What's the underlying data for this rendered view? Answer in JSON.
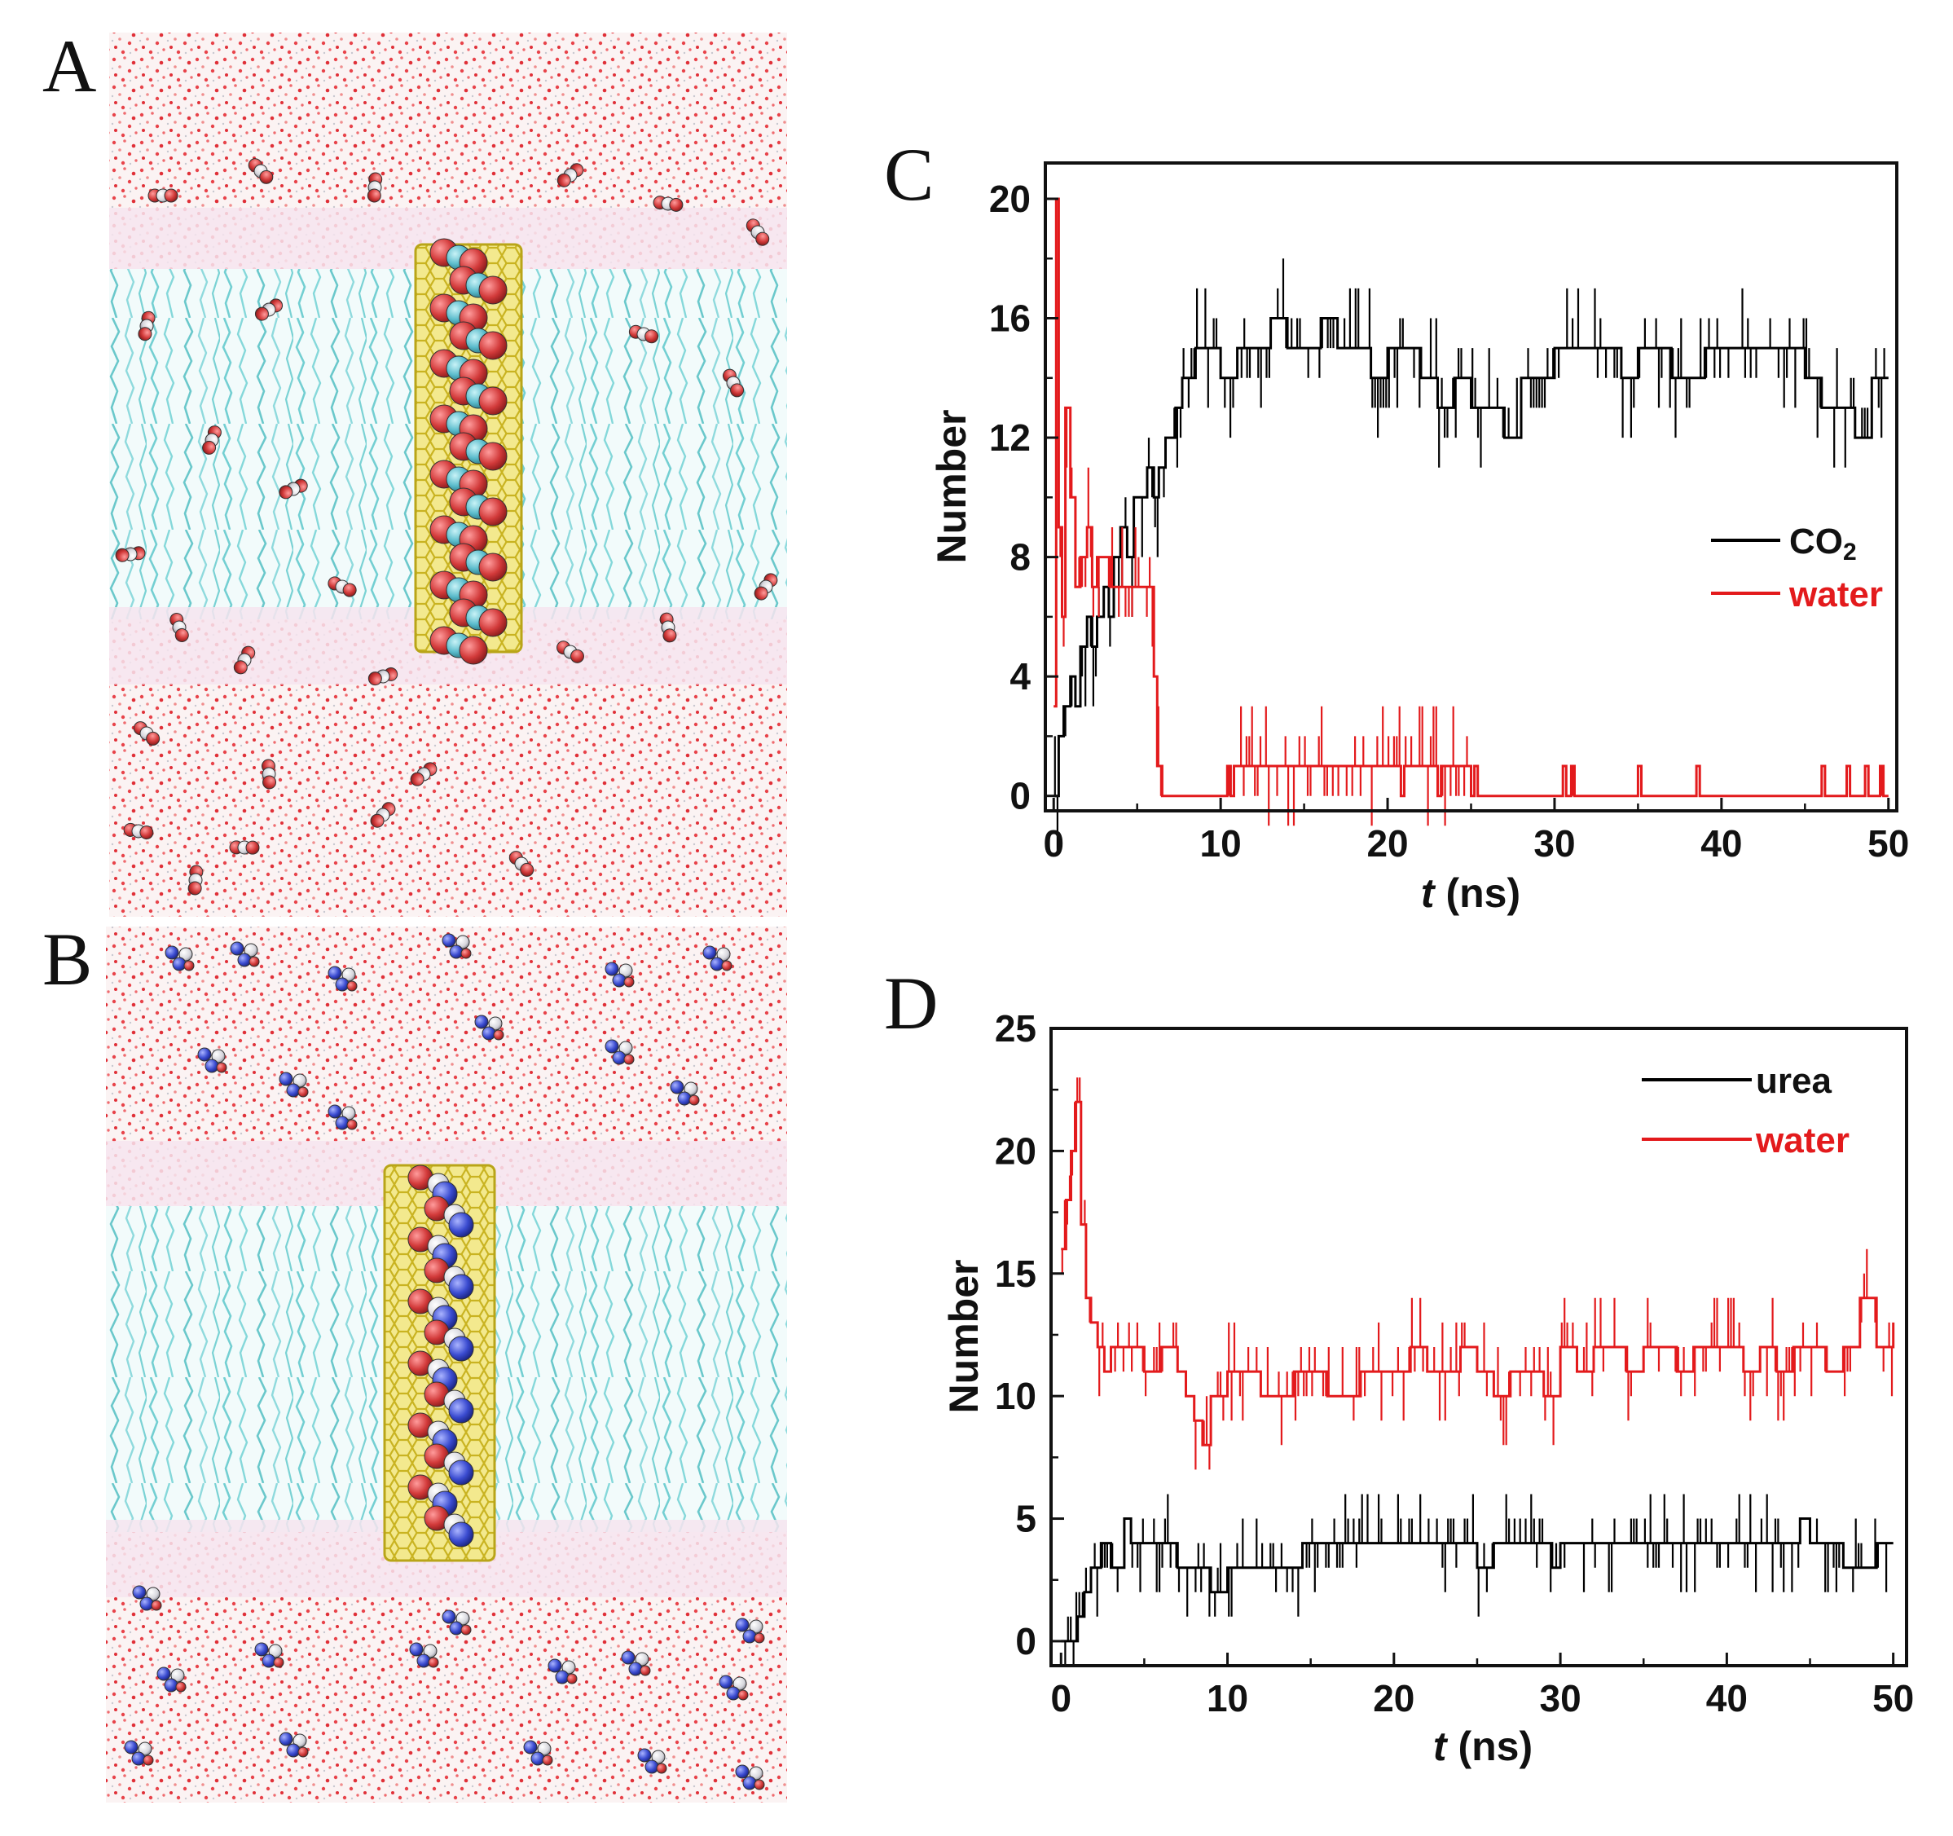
{
  "figure": {
    "panels": {
      "A": {
        "label": "A"
      },
      "B": {
        "label": "B"
      },
      "C": {
        "label": "C"
      },
      "D": {
        "label": "D"
      }
    },
    "colors": {
      "black_series": "#000000",
      "red_series": "#e31a1c",
      "water_dots": "#e8434a",
      "lipid_tails": "#7ed4d6",
      "nanotube": "#e0cf3a",
      "oxygen": "#d23a3a",
      "carbon": "#5bbccc",
      "nitrogen": "#3a4bd0"
    }
  },
  "chart_data": [
    {
      "panel": "C",
      "type": "line",
      "title": "",
      "xlabel_italic": "t",
      "xlabel_unit": " (ns)",
      "ylabel": "Number",
      "xlim": [
        -0.5,
        50.5
      ],
      "ylim": [
        -0.5,
        21.2
      ],
      "xticks": [
        0,
        10,
        20,
        30,
        40,
        50
      ],
      "yticks": [
        0,
        4,
        8,
        12,
        16,
        20
      ],
      "xtick_labels": [
        "0",
        "10",
        "20",
        "30",
        "40",
        "50"
      ],
      "ytick_labels": [
        "0",
        "4",
        "8",
        "12",
        "16",
        "20"
      ],
      "legend_position": "right",
      "series": [
        {
          "name": "CO",
          "name_subscript": "2",
          "color": "#000000",
          "step": true,
          "x": [
            0,
            0.3,
            0.6,
            1.0,
            1.3,
            1.6,
            2.0,
            2.3,
            2.6,
            3.0,
            3.3,
            3.6,
            4.0,
            4.4,
            4.8,
            5.2,
            5.6,
            6.0,
            6.3,
            6.7,
            7.0,
            7.3,
            7.7,
            8.0,
            8.5,
            9.0,
            10,
            11,
            12,
            13,
            14,
            15,
            16,
            17,
            18,
            19,
            20,
            21,
            22,
            23,
            24,
            25,
            26,
            27,
            28,
            29,
            30,
            31,
            32,
            33,
            34,
            35,
            36,
            37,
            38,
            39,
            40,
            41,
            42,
            43,
            44,
            45,
            46,
            47,
            48,
            49,
            50
          ],
          "y": [
            0,
            2,
            3,
            4,
            3,
            5,
            6,
            5,
            6,
            7,
            6,
            8,
            9,
            8,
            10,
            10,
            11,
            10,
            11,
            12,
            12,
            13,
            14,
            14,
            15,
            15,
            14,
            15,
            15,
            16,
            15,
            15,
            16,
            15,
            15,
            14,
            15,
            15,
            14,
            13,
            14,
            13,
            13,
            12,
            14,
            14,
            15,
            15,
            15,
            15,
            14,
            15,
            15,
            14,
            14,
            15,
            15,
            15,
            15,
            15,
            15,
            14,
            13,
            13,
            12,
            14,
            14
          ]
        },
        {
          "name": "water",
          "color": "#e31a1c",
          "step": true,
          "x": [
            0,
            0.15,
            0.3,
            0.5,
            0.7,
            1.0,
            1.3,
            1.6,
            2.0,
            2.3,
            2.6,
            3.0,
            3.4,
            3.8,
            4.2,
            4.6,
            5.0,
            5.5,
            6.0,
            6.2,
            6.5,
            10.4,
            10.6,
            10.8,
            20.8,
            21.0,
            23.0,
            23.2,
            25.0,
            25.2,
            25.4,
            30.5,
            30.7,
            31.0,
            31.2,
            35.0,
            35.2,
            38.5,
            38.7,
            46.0,
            46.2,
            47.5,
            47.7,
            48.6,
            48.8,
            49.5,
            49.7,
            50
          ],
          "y": [
            3,
            20,
            9,
            6,
            13,
            10,
            7,
            8,
            9,
            7,
            8,
            8,
            7,
            7,
            7,
            7,
            7,
            7,
            4,
            1,
            0,
            1,
            0,
            1,
            0,
            1,
            0,
            1,
            0,
            1,
            0,
            1,
            0,
            1,
            0,
            1,
            0,
            1,
            0,
            1,
            0,
            1,
            0,
            1,
            0,
            1,
            0,
            0
          ]
        }
      ]
    },
    {
      "panel": "D",
      "type": "line",
      "title": "",
      "xlabel_italic": "t",
      "xlabel_unit": " (ns)",
      "ylabel": "Number",
      "xlim": [
        -0.6,
        50.8
      ],
      "ylim": [
        -1.0,
        25.0
      ],
      "xticks": [
        0,
        10,
        20,
        30,
        40,
        50
      ],
      "yticks": [
        0,
        5,
        10,
        15,
        20,
        25
      ],
      "xtick_labels": [
        "0",
        "10",
        "20",
        "30",
        "40",
        "50"
      ],
      "ytick_labels": [
        "0",
        "5",
        "10",
        "15",
        "20",
        "25"
      ],
      "legend_position": "top-right",
      "series": [
        {
          "name": "urea",
          "color": "#000000",
          "step": true,
          "x": [
            0,
            1.0,
            1.4,
            1.8,
            2.4,
            3.0,
            3.8,
            4.2,
            5.0,
            6.0,
            7.0,
            8.0,
            9.0,
            10,
            11,
            12,
            13,
            14,
            14.5,
            16,
            18,
            20,
            22,
            24,
            25,
            26,
            28,
            29.5,
            30,
            32,
            34,
            36,
            38,
            40,
            42,
            44,
            44.4,
            45,
            47,
            48,
            49,
            50
          ],
          "y": [
            0,
            1,
            2,
            3,
            4,
            3,
            5,
            4,
            4,
            4,
            3,
            3,
            2,
            3,
            3,
            3,
            3,
            3,
            4,
            4,
            4,
            4,
            4,
            4,
            3,
            4,
            4,
            3,
            4,
            4,
            4,
            4,
            4,
            4,
            4,
            4,
            5,
            4,
            3,
            3,
            4,
            4
          ]
        },
        {
          "name": "water",
          "color": "#e31a1c",
          "step": true,
          "x": [
            0,
            0.3,
            0.6,
            0.9,
            1.2,
            1.5,
            1.8,
            2.2,
            2.6,
            3.0,
            4.0,
            5.0,
            6.0,
            7.0,
            7.5,
            8.0,
            8.5,
            9.0,
            10,
            11,
            12,
            13,
            14,
            15,
            16,
            17,
            18,
            19,
            20,
            21,
            22,
            23,
            24,
            25,
            26,
            27,
            28,
            29,
            30,
            31,
            32,
            33,
            34,
            35,
            36,
            37,
            38,
            39,
            40,
            41,
            42,
            43,
            44,
            45,
            46,
            47,
            48,
            49,
            50
          ],
          "y": [
            16,
            18,
            20,
            22,
            17,
            14,
            13,
            12,
            11,
            12,
            12,
            11,
            12,
            11,
            10,
            9,
            8,
            10,
            11,
            11,
            10,
            10,
            11,
            11,
            10,
            10,
            11,
            11,
            11,
            12,
            11,
            11,
            12,
            11,
            10,
            11,
            11,
            10,
            12,
            11,
            12,
            12,
            11,
            12,
            12,
            11,
            12,
            12,
            12,
            11,
            12,
            11,
            12,
            12,
            11,
            12,
            14,
            12,
            13
          ]
        }
      ]
    }
  ]
}
